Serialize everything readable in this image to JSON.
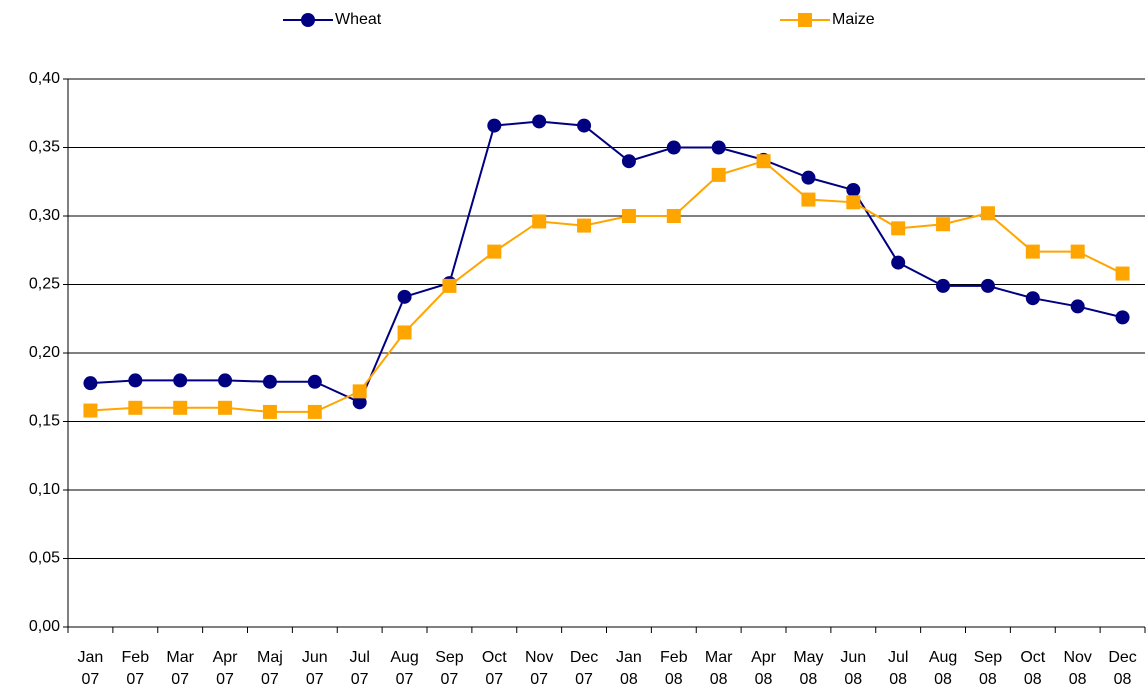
{
  "chart_data": {
    "type": "line",
    "categories": [
      "Jan 07",
      "Feb 07",
      "Mar 07",
      "Apr 07",
      "Maj 07",
      "Jun 07",
      "Jul 07",
      "Aug 07",
      "Sep 07",
      "Oct 07",
      "Nov 07",
      "Dec 07",
      "Jan 08",
      "Feb 08",
      "Mar 08",
      "Apr 08",
      "May 08",
      "Jun 08",
      "Jul 08",
      "Aug 08",
      "Sep 08",
      "Oct 08",
      "Nov 08",
      "Dec 08"
    ],
    "series": [
      {
        "name": "Wheat",
        "color": "#000080",
        "marker": "circle",
        "values": [
          0.178,
          0.18,
          0.18,
          0.18,
          0.179,
          0.179,
          0.164,
          0.241,
          0.251,
          0.366,
          0.369,
          0.366,
          0.34,
          0.35,
          0.35,
          0.341,
          0.328,
          0.319,
          0.266,
          0.249,
          0.249,
          0.24,
          0.234,
          0.226
        ]
      },
      {
        "name": "Maize",
        "color": "#FFA500",
        "marker": "square",
        "values": [
          0.158,
          0.16,
          0.16,
          0.16,
          0.157,
          0.157,
          0.172,
          0.215,
          0.249,
          0.274,
          0.296,
          0.293,
          0.3,
          0.3,
          0.33,
          0.34,
          0.312,
          0.31,
          0.291,
          0.294,
          0.302,
          0.274,
          0.274,
          0.258
        ]
      }
    ],
    "ylim": [
      0,
      0.4
    ],
    "yticks": [
      {
        "value": 0,
        "label": "0,00"
      },
      {
        "value": 0.05,
        "label": "0,05"
      },
      {
        "value": 0.1,
        "label": "0,10"
      },
      {
        "value": 0.15,
        "label": "0,15"
      },
      {
        "value": 0.2,
        "label": "0,20"
      },
      {
        "value": 0.25,
        "label": "0,25"
      },
      {
        "value": 0.3,
        "label": "0,30"
      },
      {
        "value": 0.35,
        "label": "0,35"
      },
      {
        "value": 0.4,
        "label": "0,40"
      }
    ],
    "grid": true,
    "legend": "top"
  }
}
